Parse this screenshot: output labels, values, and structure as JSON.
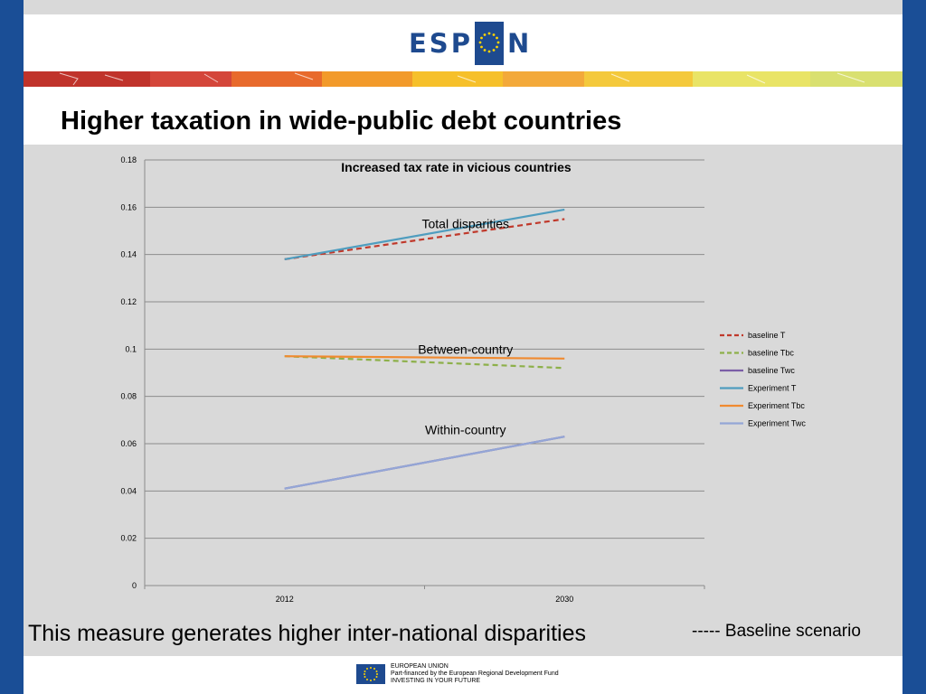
{
  "header": {
    "logo_text_left": "ESP",
    "logo_text_right": "N",
    "logo_name": "espon-logo"
  },
  "slide": {
    "title": "Higher taxation in wide-public debt countries",
    "footer_text": "This measure generates higher inter-national disparities",
    "baseline_note": "----- Baseline scenario"
  },
  "eu": {
    "line1": "EUROPEAN UNION",
    "line2": "Part-financed by the European Regional Development Fund",
    "line3": "INVESTING IN YOUR FUTURE"
  },
  "colors": {
    "slide_bg": "#d9d9d9",
    "frame": "#1a4e96",
    "baseline_T": "#c0392b",
    "baseline_Tbc": "#8db04a",
    "baseline_Twc": "#7b5ea7",
    "experiment_T": "#4f9dbf",
    "experiment_Tbc": "#f08a30",
    "experiment_Twc": "#94a6d6"
  },
  "chart_data": {
    "type": "line",
    "title": "Increased tax rate in vicious countries",
    "x": [
      "2012",
      "2030"
    ],
    "ylim": [
      0,
      0.18
    ],
    "yticks": [
      "0",
      "0.02",
      "0.04",
      "0.06",
      "0.08",
      "0.1",
      "0.12",
      "0.14",
      "0.16",
      "0.18"
    ],
    "grid": true,
    "legend_position": "right",
    "series": [
      {
        "name": "baseline T",
        "values": [
          0.138,
          0.155
        ],
        "dash": true,
        "color": "#c0392b"
      },
      {
        "name": "baseline Tbc",
        "values": [
          0.097,
          0.092
        ],
        "dash": true,
        "color": "#8db04a"
      },
      {
        "name": "baseline Twc",
        "values": [
          0.041,
          0.063
        ],
        "dash": false,
        "color": "#7b5ea7"
      },
      {
        "name": "Experiment T",
        "values": [
          0.138,
          0.159
        ],
        "dash": false,
        "color": "#4f9dbf"
      },
      {
        "name": "Experiment Tbc",
        "values": [
          0.097,
          0.096
        ],
        "dash": false,
        "color": "#f08a30"
      },
      {
        "name": "Experiment Twc",
        "values": [
          0.041,
          0.063
        ],
        "dash": false,
        "color": "#94a6d6"
      }
    ],
    "annotations": [
      {
        "text": "Total disparities",
        "x": "2012",
        "y": 0.153
      },
      {
        "text": "Between-country",
        "x": "2012",
        "y": 0.1
      },
      {
        "text": "Within-country",
        "x": "2012",
        "y": 0.066
      }
    ]
  }
}
